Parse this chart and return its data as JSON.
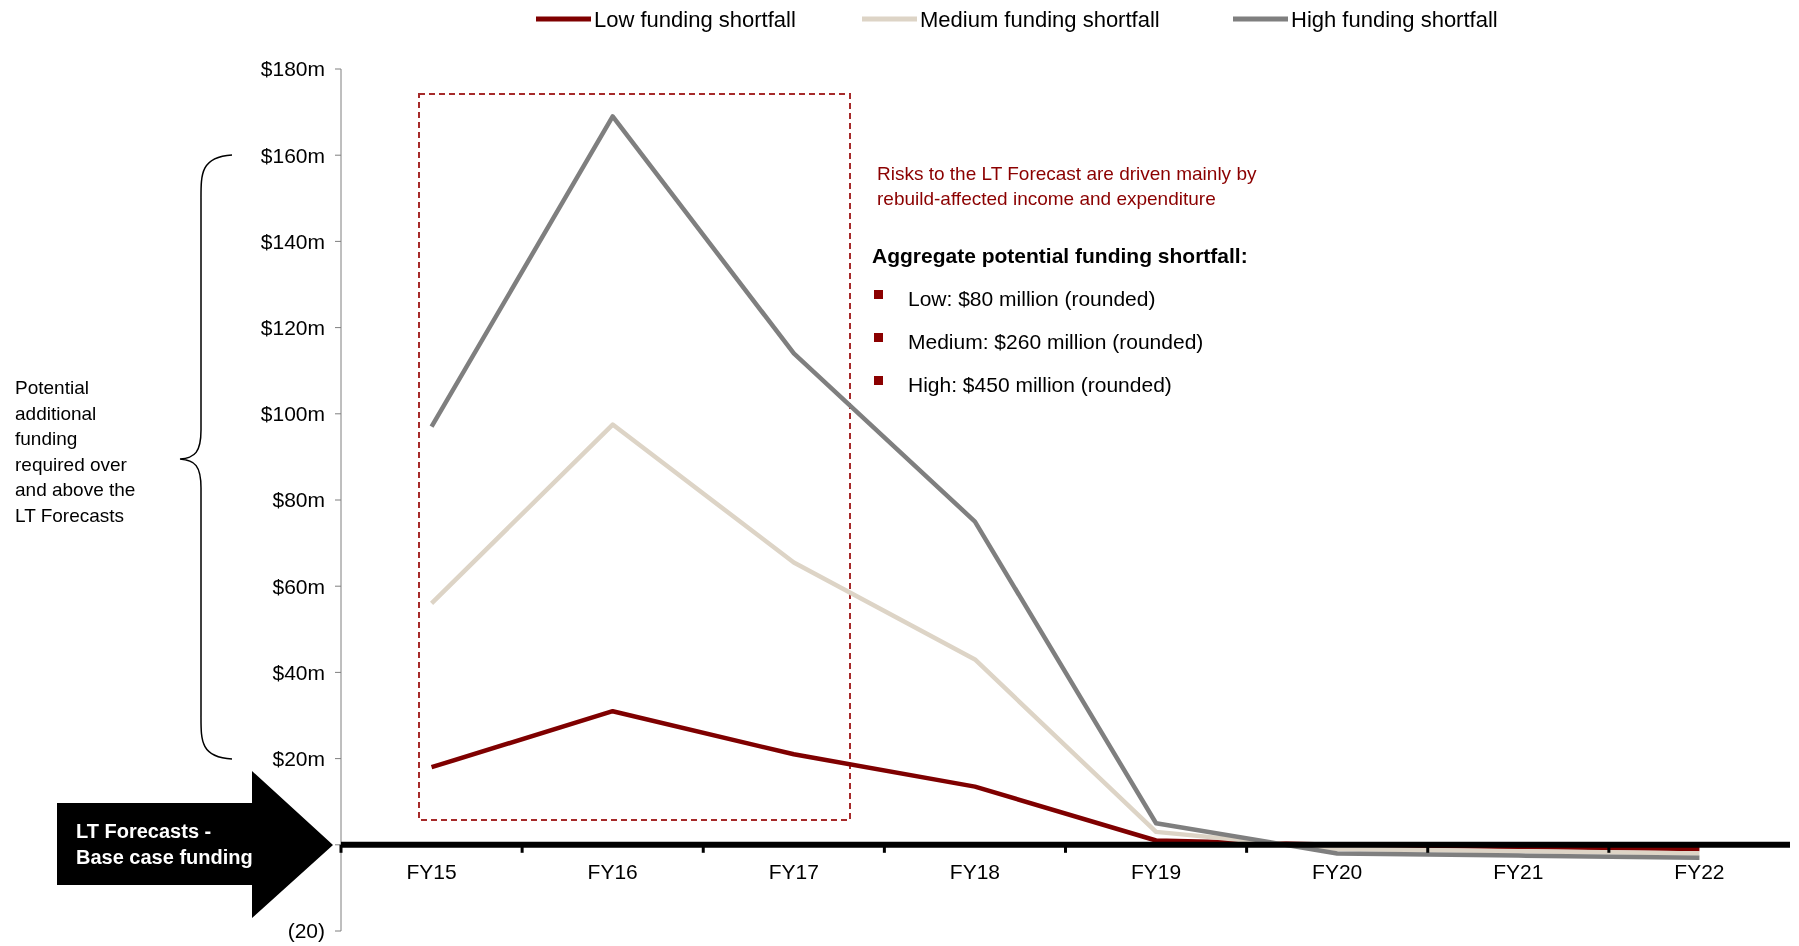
{
  "chart_data": {
    "type": "line",
    "categories": [
      "FY15",
      "FY16",
      "FY17",
      "FY18",
      "FY19",
      "FY20",
      "FY21",
      "FY22"
    ],
    "series": [
      {
        "name": "Low funding shortfall",
        "color": "#7f0000",
        "values": [
          18,
          31,
          21,
          13.5,
          1,
          0,
          -0.5,
          -1
        ]
      },
      {
        "name": "Medium funding shortfall",
        "color": "#ddd4c6",
        "values": [
          56,
          97.5,
          65.5,
          43,
          3,
          -1,
          -1.5,
          -2
        ]
      },
      {
        "name": "High funding shortfall",
        "color": "#7f7f7f",
        "values": [
          97,
          169,
          114,
          75,
          5,
          -2,
          -2.5,
          -3
        ]
      }
    ],
    "ylim": [
      -20,
      180
    ],
    "yticks": [
      {
        "value": -20,
        "label": "(20)"
      },
      {
        "value": 0,
        "label": null
      },
      {
        "value": 20,
        "label": "$20m"
      },
      {
        "value": 40,
        "label": "$40m"
      },
      {
        "value": 60,
        "label": "$60m"
      },
      {
        "value": 80,
        "label": "$80m"
      },
      {
        "value": 100,
        "label": "$100m"
      },
      {
        "value": 120,
        "label": "$120m"
      },
      {
        "value": 140,
        "label": "$140m"
      },
      {
        "value": 160,
        "label": "$160m"
      },
      {
        "value": 180,
        "label": "$180m"
      }
    ],
    "grid": false,
    "legend": "top",
    "marker": "none",
    "line_style": "solid",
    "annotations": [
      "Risks to the LT Forecast are driven mainly by rebuild-affected income and expenditure",
      "Aggregate potential funding shortfall:",
      "Low: $80 million (rounded)",
      "Medium: $260 million (rounded)",
      "High: $450 million (rounded)",
      "Potential additional funding required over and above the LT Forecasts",
      "LT Forecasts - Base case funding"
    ]
  }
}
